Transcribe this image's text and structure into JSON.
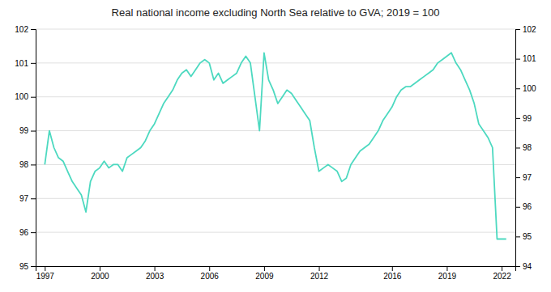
{
  "chart_data": {
    "type": "line",
    "title": "Real national income excluding North Sea relative to GVA; 2019 = 100",
    "color": "#4dd9c0",
    "grid": true,
    "xlim": [
      1996.5,
      2022.75
    ],
    "xticks": [
      1997,
      2000,
      2003,
      2006,
      2009,
      2012,
      2016,
      2019,
      2022
    ],
    "ylim": [
      95,
      102
    ],
    "yticks": [
      95,
      96,
      97,
      98,
      99,
      100,
      101,
      102
    ],
    "y2lim": [
      94,
      102
    ],
    "y2ticks": [
      94,
      95,
      96,
      97,
      98,
      99,
      100,
      101,
      102
    ],
    "x": [
      1997.0,
      1997.25,
      1997.5,
      1997.75,
      1998.0,
      1998.25,
      1998.5,
      1998.75,
      1999.0,
      1999.25,
      1999.5,
      1999.75,
      2000.0,
      2000.25,
      2000.5,
      2000.75,
      2001.0,
      2001.25,
      2001.5,
      2001.75,
      2002.0,
      2002.25,
      2002.5,
      2002.75,
      2003.0,
      2003.25,
      2003.5,
      2003.75,
      2004.0,
      2004.25,
      2004.5,
      2004.75,
      2005.0,
      2005.25,
      2005.5,
      2005.75,
      2006.0,
      2006.25,
      2006.5,
      2006.75,
      2007.0,
      2007.25,
      2007.5,
      2007.75,
      2008.0,
      2008.25,
      2008.5,
      2008.75,
      2009.0,
      2009.25,
      2009.5,
      2009.75,
      2010.0,
      2010.25,
      2010.5,
      2010.75,
      2011.0,
      2011.25,
      2011.5,
      2011.75,
      2012.0,
      2012.25,
      2012.5,
      2012.75,
      2013.0,
      2013.25,
      2013.5,
      2013.75,
      2014.0,
      2014.25,
      2014.5,
      2014.75,
      2015.0,
      2015.25,
      2015.5,
      2015.75,
      2016.0,
      2016.25,
      2016.5,
      2016.75,
      2017.0,
      2017.25,
      2017.5,
      2017.75,
      2018.0,
      2018.25,
      2018.5,
      2018.75,
      2019.0,
      2019.25,
      2019.5,
      2019.75,
      2020.0,
      2020.25,
      2020.5,
      2020.75,
      2021.0,
      2021.25,
      2021.5,
      2021.75,
      2022.0,
      2022.25
    ],
    "values": [
      98.0,
      99.0,
      98.5,
      98.2,
      98.1,
      97.8,
      97.5,
      97.3,
      97.1,
      96.6,
      97.5,
      97.8,
      97.9,
      98.1,
      97.9,
      98.0,
      98.0,
      97.8,
      98.2,
      98.3,
      98.4,
      98.5,
      98.7,
      99.0,
      99.2,
      99.5,
      99.8,
      100.0,
      100.2,
      100.5,
      100.7,
      100.8,
      100.6,
      100.8,
      101.0,
      101.1,
      101.0,
      100.5,
      100.7,
      100.4,
      100.5,
      100.6,
      100.7,
      101.0,
      101.2,
      101.0,
      100.0,
      99.0,
      101.3,
      100.5,
      100.2,
      99.8,
      100.0,
      100.2,
      100.1,
      99.9,
      99.7,
      99.5,
      99.3,
      98.5,
      97.8,
      97.9,
      98.0,
      97.9,
      97.8,
      97.5,
      97.6,
      98.0,
      98.2,
      98.4,
      98.5,
      98.6,
      98.8,
      99.0,
      99.3,
      99.5,
      99.7,
      100.0,
      100.2,
      100.3,
      100.3,
      100.4,
      100.5,
      100.6,
      100.7,
      100.8,
      101.0,
      101.1,
      101.2,
      101.3,
      101.0,
      100.8,
      100.5,
      100.2,
      99.8,
      99.2,
      99.0,
      98.8,
      98.5,
      95.8,
      95.8,
      95.8
    ]
  }
}
